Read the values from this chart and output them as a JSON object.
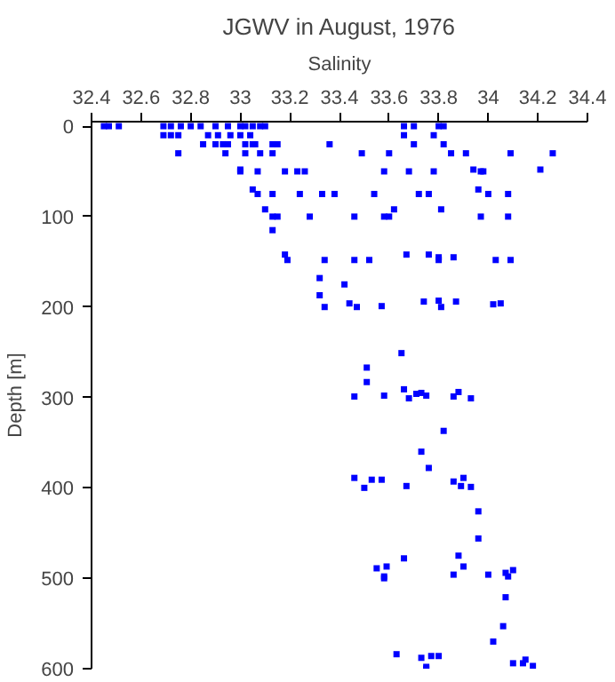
{
  "chart_data": {
    "type": "scatter",
    "title": "JGWV in August, 1976",
    "xlabel": "Salinity",
    "ylabel": "Depth [m]",
    "xlim": [
      32.4,
      34.4
    ],
    "xticks": [
      32.4,
      32.6,
      32.8,
      33,
      33.2,
      33.4,
      33.6,
      33.8,
      34,
      34.2,
      34.4
    ],
    "ylim": [
      600,
      -5
    ],
    "yticks": [
      0,
      100,
      200,
      300,
      400,
      500,
      600
    ],
    "marker": "square",
    "series": [
      {
        "color": "#0000ff",
        "x": [
          32.45,
          32.47,
          32.51,
          32.69,
          32.72,
          32.76,
          32.8,
          32.84,
          32.9,
          32.95,
          33.0,
          33.02,
          33.05,
          33.08,
          33.1,
          33.66,
          33.7,
          33.8,
          33.82,
          32.69,
          32.72,
          32.75,
          32.87,
          32.91,
          32.96,
          33.0,
          33.04,
          33.66,
          33.78,
          32.85,
          32.9,
          32.93,
          32.95,
          33.02,
          33.05,
          33.06,
          33.13,
          33.15,
          33.36,
          33.7,
          33.82,
          32.75,
          32.94,
          33.02,
          33.08,
          33.13,
          33.49,
          33.6,
          33.85,
          33.91,
          34.09,
          34.26,
          33.0,
          33.94,
          34.21,
          33.0,
          33.07,
          33.18,
          33.23,
          33.26,
          33.58,
          33.68,
          33.78,
          33.97,
          33.98,
          33.05,
          33.96,
          33.07,
          33.13,
          33.24,
          33.33,
          33.38,
          33.54,
          33.72,
          33.76,
          34.0,
          34.08,
          33.1,
          33.62,
          33.81,
          33.13,
          33.15,
          33.28,
          33.46,
          33.58,
          33.6,
          33.97,
          34.08,
          33.13,
          33.18,
          33.67,
          33.76,
          33.8,
          33.86,
          33.19,
          33.34,
          33.46,
          33.52,
          33.8,
          34.03,
          34.09,
          33.32,
          33.42,
          33.32,
          33.34,
          33.44,
          33.47,
          33.57,
          33.74,
          33.8,
          33.81,
          33.87,
          34.02,
          34.05,
          33.65,
          33.51,
          33.51,
          33.46,
          33.58,
          33.66,
          33.68,
          33.71,
          33.73,
          33.75,
          33.86,
          33.88,
          33.93,
          33.82,
          33.73,
          33.76,
          33.46,
          33.5,
          33.53,
          33.57,
          33.67,
          33.86,
          33.89,
          33.9,
          33.93,
          33.96,
          33.96,
          33.88,
          33.9,
          33.86,
          34.0,
          34.07,
          34.08,
          34.1,
          34.07,
          34.06,
          34.02,
          34.1,
          34.14,
          34.15,
          34.18,
          33.55,
          33.59,
          33.58,
          33.58,
          33.66,
          33.63,
          33.73,
          33.75,
          33.75,
          33.77,
          33.8
        ],
        "values": [
          0,
          0,
          0,
          0,
          0,
          0,
          0,
          0,
          0,
          0,
          0,
          0,
          0,
          0,
          0,
          0,
          0,
          0,
          0,
          10,
          10,
          10,
          10,
          10,
          10,
          10,
          10,
          10,
          10,
          20,
          20,
          20,
          20,
          20,
          20,
          20,
          20,
          20,
          20,
          20,
          20,
          30,
          30,
          30,
          30,
          30,
          30,
          30,
          30,
          30,
          30,
          30,
          48,
          48,
          48,
          50,
          50,
          50,
          50,
          50,
          50,
          50,
          50,
          50,
          50,
          70,
          70,
          75,
          75,
          75,
          75,
          75,
          75,
          75,
          75,
          75,
          75,
          92,
          92,
          92,
          100,
          100,
          100,
          100,
          100,
          100,
          100,
          100,
          115,
          142,
          142,
          142,
          145,
          145,
          148,
          148,
          148,
          148,
          148,
          148,
          148,
          168,
          175,
          187,
          200,
          196,
          200,
          199,
          194,
          193,
          200,
          194,
          197,
          196,
          251,
          267,
          283,
          299,
          298,
          291,
          301,
          296,
          295,
          298,
          299,
          294,
          301,
          337,
          360,
          378,
          389,
          400,
          391,
          391,
          398,
          393,
          398,
          389,
          399,
          426,
          456,
          475,
          487,
          496,
          496,
          494,
          498,
          491,
          521,
          553,
          570,
          594,
          594,
          590,
          597,
          489,
          487,
          498,
          500,
          478,
          584,
          588,
          598,
          600,
          586,
          586
        ]
      }
    ]
  }
}
